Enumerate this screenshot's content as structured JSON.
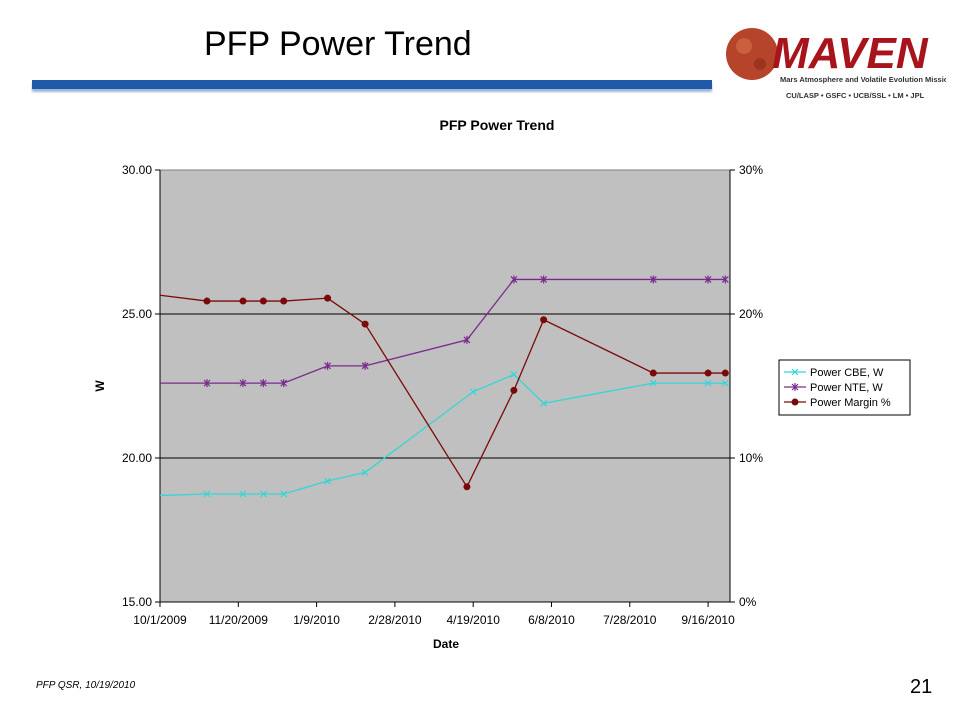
{
  "slide": {
    "title": "PFP Power Trend",
    "footer": "PFP QSR, 10/19/2010",
    "page_number": "21"
  },
  "logo": {
    "name": "MAVEN",
    "subtitle": "Mars Atmosphere and Volatile Evolution Mission",
    "partners": "CU/LASP • GSFC • UCB/SSL • LM • JPL",
    "colors": {
      "red": "#a8141c",
      "planet": "#b5442a"
    }
  },
  "colors": {
    "title_bar": "#1e5aa8",
    "plot_bg": "#c0c0c0",
    "cbe": "#33d6d6",
    "nte": "#7a2a8c",
    "margin": "#7a0a0a"
  },
  "chart_data": {
    "type": "line",
    "title": "PFP Power Trend",
    "xlabel": "Date",
    "ylabel": "W",
    "x_axis": {
      "min": "2009-10-01",
      "max": "2010-09-30",
      "tick_labels": [
        "10/1/2009",
        "11/20/2009",
        "1/9/2010",
        "2/28/2010",
        "4/19/2010",
        "6/8/2010",
        "7/28/2010",
        "9/16/2010"
      ],
      "tick_dates": [
        "2009-10-01",
        "2009-11-20",
        "2010-01-09",
        "2010-02-28",
        "2010-04-19",
        "2010-06-08",
        "2010-07-28",
        "2010-09-16"
      ]
    },
    "y_axis_left": {
      "min": 15,
      "max": 30,
      "ticks": [
        "15.00",
        "20.00",
        "25.00",
        "30.00"
      ],
      "tick_values": [
        15,
        20,
        25,
        30
      ]
    },
    "y_axis_right": {
      "min": 0,
      "max": 30,
      "ticks": [
        "0%",
        "10%",
        "20%",
        "30%"
      ],
      "tick_values": [
        0,
        10,
        20,
        30
      ]
    },
    "grid": "horizontal major lines at 20.00 and 25.00",
    "legend": "right",
    "series": [
      {
        "name": "Power CBE, W",
        "axis": "left",
        "marker": "x",
        "points": [
          [
            "2009-10-01",
            18.7
          ],
          [
            "2009-10-31",
            18.75
          ],
          [
            "2009-11-23",
            18.75
          ],
          [
            "2009-12-06",
            18.75
          ],
          [
            "2009-12-19",
            18.75
          ],
          [
            "2010-01-16",
            19.2
          ],
          [
            "2010-02-09",
            19.5
          ],
          [
            "2010-04-19",
            22.3
          ],
          [
            "2010-05-15",
            22.9
          ],
          [
            "2010-06-03",
            21.9
          ],
          [
            "2010-08-12",
            22.6
          ],
          [
            "2010-09-16",
            22.6
          ],
          [
            "2010-09-27",
            22.6
          ]
        ]
      },
      {
        "name": "Power NTE, W",
        "axis": "left",
        "marker": "asterisk",
        "points": [
          [
            "2009-10-01",
            22.6
          ],
          [
            "2009-10-31",
            22.6
          ],
          [
            "2009-11-23",
            22.6
          ],
          [
            "2009-12-06",
            22.6
          ],
          [
            "2009-12-19",
            22.6
          ],
          [
            "2010-01-16",
            23.2
          ],
          [
            "2010-02-09",
            23.2
          ],
          [
            "2010-04-15",
            24.1
          ],
          [
            "2010-05-15",
            26.2
          ],
          [
            "2010-06-03",
            26.2
          ],
          [
            "2010-08-12",
            26.2
          ],
          [
            "2010-09-16",
            26.2
          ],
          [
            "2010-09-27",
            26.2
          ]
        ]
      },
      {
        "name": "Power Margin %",
        "axis": "right",
        "marker": "circle",
        "points": [
          [
            "2009-10-01",
            21.3
          ],
          [
            "2009-10-31",
            20.9
          ],
          [
            "2009-11-23",
            20.9
          ],
          [
            "2009-12-06",
            20.9
          ],
          [
            "2009-12-19",
            20.9
          ],
          [
            "2010-01-16",
            21.1
          ],
          [
            "2010-02-09",
            19.3
          ],
          [
            "2010-04-15",
            8.0
          ],
          [
            "2010-05-15",
            14.7
          ],
          [
            "2010-06-03",
            19.6
          ],
          [
            "2010-08-12",
            15.9
          ],
          [
            "2010-09-16",
            15.9
          ],
          [
            "2010-09-27",
            15.9
          ]
        ]
      }
    ]
  }
}
